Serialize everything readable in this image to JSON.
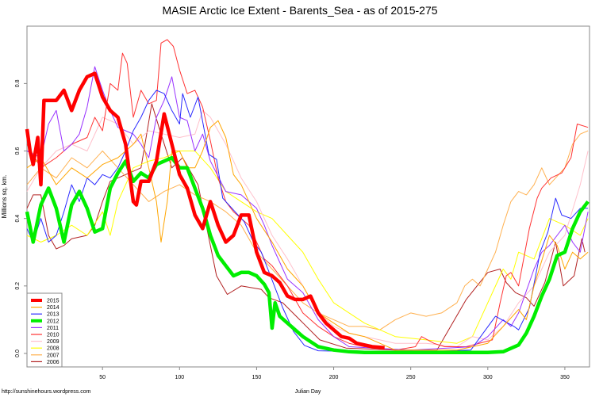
{
  "chart_data": {
    "type": "line",
    "title": "MASIE Arctic Ice Extent - Barents_Sea - as of 2015-275",
    "xlabel": "Julian Day",
    "ylabel": "Millions sq. km.",
    "xlim": [
      1,
      366
    ],
    "ylim": [
      -0.04,
      0.97
    ],
    "xticks": [
      50,
      100,
      150,
      200,
      250,
      300,
      350
    ],
    "yticks": [
      "0.0",
      "0.2",
      "0.4",
      "0.6",
      "0.8"
    ],
    "grid": false,
    "legend_position": "bottom-left",
    "series": [
      {
        "name": "2015",
        "color": "#ff0000",
        "thick": true,
        "x": [
          1,
          3,
          5,
          8,
          10,
          12,
          15,
          20,
          25,
          30,
          35,
          40,
          45,
          50,
          55,
          60,
          65,
          70,
          72,
          75,
          80,
          85,
          90,
          95,
          100,
          105,
          110,
          115,
          120,
          125,
          130,
          135,
          140,
          145,
          150,
          155,
          160,
          165,
          170,
          175,
          180,
          185,
          190,
          195,
          200,
          205,
          210,
          215,
          220,
          225,
          233
        ],
        "y": [
          0.665,
          0.6,
          0.56,
          0.64,
          0.5,
          0.75,
          0.75,
          0.75,
          0.78,
          0.72,
          0.78,
          0.82,
          0.83,
          0.76,
          0.72,
          0.7,
          0.62,
          0.45,
          0.44,
          0.51,
          0.51,
          0.57,
          0.71,
          0.62,
          0.53,
          0.49,
          0.41,
          0.37,
          0.45,
          0.38,
          0.33,
          0.35,
          0.41,
          0.41,
          0.3,
          0.24,
          0.23,
          0.21,
          0.17,
          0.16,
          0.16,
          0.17,
          0.12,
          0.09,
          0.07,
          0.05,
          0.045,
          0.03,
          0.025,
          0.02,
          0.017
        ]
      },
      {
        "name": "2014",
        "color": "#ffa500",
        "thick": false,
        "x": [
          1,
          10,
          20,
          30,
          40,
          50,
          60,
          65,
          70,
          75,
          80,
          85,
          88,
          92,
          95,
          100,
          105,
          110,
          115,
          120,
          125,
          130,
          135,
          140,
          145,
          150,
          160,
          170,
          180,
          190,
          200,
          210,
          220,
          230,
          240,
          260,
          280,
          300,
          310,
          320,
          325,
          330,
          340,
          345,
          350,
          355,
          360,
          365
        ],
        "y": [
          0.55,
          0.58,
          0.5,
          0.55,
          0.52,
          0.56,
          0.58,
          0.6,
          0.62,
          0.65,
          0.55,
          0.45,
          0.33,
          0.45,
          0.6,
          0.6,
          0.55,
          0.55,
          0.6,
          0.67,
          0.69,
          0.64,
          0.53,
          0.5,
          0.45,
          0.4,
          0.33,
          0.25,
          0.2,
          0.12,
          0.09,
          0.06,
          0.05,
          0.03,
          0.01,
          0.01,
          0.01,
          0.03,
          0.08,
          0.13,
          0.1,
          0.2,
          0.35,
          0.32,
          0.25,
          0.3,
          0.28,
          0.3
        ]
      },
      {
        "name": "2013",
        "color": "#2a2aff",
        "thick": false,
        "x": [
          1,
          5,
          10,
          15,
          20,
          25,
          30,
          35,
          40,
          45,
          50,
          55,
          60,
          65,
          70,
          75,
          80,
          85,
          90,
          95,
          100,
          102,
          107,
          112,
          119,
          124,
          128,
          142,
          148,
          153,
          159,
          167,
          174,
          181,
          190,
          220,
          260,
          289,
          305,
          317,
          320,
          327,
          334,
          339,
          344,
          348,
          354,
          360,
          365
        ],
        "y": [
          0.37,
          0.33,
          0.4,
          0.33,
          0.35,
          0.42,
          0.5,
          0.45,
          0.52,
          0.5,
          0.53,
          0.52,
          0.55,
          0.6,
          0.66,
          0.7,
          0.75,
          0.78,
          0.77,
          0.72,
          0.68,
          0.77,
          0.7,
          0.76,
          0.59,
          0.575,
          0.46,
          0.39,
          0.33,
          0.3,
          0.23,
          0.135,
          0.065,
          0.024,
          0.008,
          0.005,
          0.005,
          0.01,
          0.11,
          0.08,
          0.07,
          0.135,
          0.3,
          0.36,
          0.46,
          0.41,
          0.4,
          0.43,
          0.43
        ]
      },
      {
        "name": "2012",
        "color": "#00ee00",
        "thick": true,
        "x": [
          1,
          5,
          10,
          15,
          20,
          25,
          30,
          35,
          40,
          45,
          50,
          55,
          60,
          65,
          70,
          75,
          80,
          85,
          90,
          95,
          100,
          105,
          110,
          115,
          120,
          125,
          130,
          135,
          140,
          145,
          150,
          155,
          158,
          160,
          162,
          165,
          170,
          180,
          190,
          200,
          210,
          220,
          250,
          300,
          310,
          315,
          320,
          325,
          330,
          335,
          340,
          345,
          350,
          355,
          360,
          365
        ],
        "y": [
          0.42,
          0.33,
          0.44,
          0.49,
          0.43,
          0.33,
          0.44,
          0.48,
          0.43,
          0.36,
          0.37,
          0.49,
          0.535,
          0.57,
          0.51,
          0.535,
          0.52,
          0.56,
          0.57,
          0.58,
          0.55,
          0.55,
          0.49,
          0.43,
          0.35,
          0.29,
          0.26,
          0.23,
          0.24,
          0.24,
          0.23,
          0.205,
          0.18,
          0.075,
          0.15,
          0.11,
          0.09,
          0.05,
          0.02,
          0.01,
          0.005,
          0.003,
          0.003,
          0.003,
          0.005,
          0.015,
          0.025,
          0.06,
          0.11,
          0.17,
          0.22,
          0.29,
          0.3,
          0.37,
          0.42,
          0.45
        ]
      },
      {
        "name": "2011",
        "color": "#9933ff",
        "thick": false,
        "x": [
          1,
          10,
          15,
          20,
          25,
          30,
          35,
          40,
          45,
          50,
          55,
          60,
          65,
          70,
          75,
          80,
          85,
          90,
          95,
          100,
          105,
          110,
          115,
          120,
          130,
          140,
          150,
          155,
          160,
          165,
          170,
          180,
          190,
          200,
          210,
          250,
          290,
          300,
          310,
          315,
          320,
          330,
          335,
          340,
          345,
          350,
          355,
          360,
          365
        ],
        "y": [
          0.6,
          0.58,
          0.68,
          0.72,
          0.6,
          0.62,
          0.65,
          0.73,
          0.85,
          0.78,
          0.72,
          0.67,
          0.66,
          0.65,
          0.62,
          0.58,
          0.7,
          0.75,
          0.82,
          0.7,
          0.69,
          0.6,
          0.65,
          0.57,
          0.48,
          0.47,
          0.43,
          0.38,
          0.32,
          0.27,
          0.22,
          0.18,
          0.1,
          0.05,
          0.02,
          0.01,
          0.02,
          0.05,
          0.1,
          0.08,
          0.12,
          0.25,
          0.3,
          0.32,
          0.35,
          0.38,
          0.33,
          0.3,
          0.42
        ]
      },
      {
        "name": "2010",
        "color": "#ff3333",
        "thick": false,
        "x": [
          1,
          10,
          20,
          30,
          40,
          45,
          50,
          55,
          60,
          63,
          66,
          70,
          75,
          80,
          85,
          88,
          92,
          96,
          100,
          105,
          110,
          115,
          120,
          125,
          130,
          135,
          140,
          145,
          150,
          155,
          160,
          170,
          180,
          190,
          200,
          210,
          220,
          240,
          253,
          257,
          265,
          272,
          286,
          303,
          308,
          312,
          315,
          320,
          327,
          332,
          335,
          341,
          348,
          354,
          358,
          365
        ],
        "y": [
          0.62,
          0.55,
          0.58,
          0.62,
          0.64,
          0.7,
          0.66,
          0.8,
          0.78,
          0.89,
          0.86,
          0.7,
          0.78,
          0.74,
          0.75,
          0.92,
          0.93,
          0.91,
          0.84,
          0.77,
          0.78,
          0.73,
          0.63,
          0.52,
          0.45,
          0.42,
          0.4,
          0.38,
          0.33,
          0.28,
          0.26,
          0.2,
          0.12,
          0.08,
          0.05,
          0.03,
          0.02,
          0.01,
          0.02,
          0.05,
          0.03,
          0.02,
          0.02,
          0.04,
          0.15,
          0.23,
          0.24,
          0.2,
          0.37,
          0.46,
          0.49,
          0.52,
          0.535,
          0.58,
          0.68,
          0.67
        ]
      },
      {
        "name": "2009",
        "color": "#ffc0cb",
        "thick": false,
        "x": [
          1,
          10,
          20,
          30,
          40,
          50,
          60,
          70,
          80,
          90,
          100,
          110,
          115,
          120,
          130,
          140,
          150,
          160,
          170,
          180,
          190,
          200,
          210,
          220,
          230,
          240,
          260,
          280,
          290,
          300,
          310,
          320,
          330,
          340,
          350,
          360,
          365
        ],
        "y": [
          0.48,
          0.55,
          0.6,
          0.62,
          0.6,
          0.7,
          0.68,
          0.62,
          0.66,
          0.65,
          0.64,
          0.65,
          0.72,
          0.7,
          0.62,
          0.52,
          0.45,
          0.35,
          0.28,
          0.2,
          0.12,
          0.08,
          0.06,
          0.05,
          0.04,
          0.03,
          0.03,
          0.02,
          0.05,
          0.04,
          0.08,
          0.15,
          0.2,
          0.3,
          0.35,
          0.5,
          0.6
        ]
      },
      {
        "name": "2008",
        "color": "#ffff00",
        "thick": false,
        "x": [
          1,
          10,
          20,
          30,
          40,
          50,
          55,
          60,
          70,
          80,
          90,
          100,
          110,
          120,
          130,
          140,
          150,
          160,
          170,
          180,
          190,
          200,
          210,
          220,
          230,
          240,
          260,
          280,
          290,
          300,
          310,
          315,
          320,
          330,
          340,
          350,
          360,
          365
        ],
        "y": [
          0.35,
          0.33,
          0.35,
          0.38,
          0.35,
          0.42,
          0.35,
          0.45,
          0.55,
          0.57,
          0.58,
          0.6,
          0.6,
          0.55,
          0.48,
          0.45,
          0.42,
          0.4,
          0.35,
          0.3,
          0.22,
          0.15,
          0.12,
          0.09,
          0.07,
          0.05,
          0.04,
          0.03,
          0.05,
          0.15,
          0.25,
          0.22,
          0.3,
          0.28,
          0.4,
          0.38,
          0.35,
          0.4
        ]
      },
      {
        "name": "2007",
        "color": "#ffb04f",
        "thick": false,
        "x": [
          1,
          10,
          20,
          30,
          40,
          50,
          60,
          70,
          80,
          90,
          100,
          110,
          120,
          130,
          140,
          150,
          160,
          170,
          180,
          190,
          200,
          210,
          220,
          230,
          240,
          250,
          260,
          270,
          280,
          285,
          290,
          295,
          300,
          305,
          310,
          315,
          320,
          325,
          330,
          335,
          340,
          350,
          355,
          360,
          365
        ],
        "y": [
          0.5,
          0.55,
          0.52,
          0.58,
          0.55,
          0.6,
          0.55,
          0.5,
          0.45,
          0.48,
          0.5,
          0.47,
          0.45,
          0.42,
          0.38,
          0.3,
          0.25,
          0.2,
          0.15,
          0.12,
          0.1,
          0.08,
          0.08,
          0.07,
          0.1,
          0.12,
          0.11,
          0.12,
          0.15,
          0.2,
          0.22,
          0.2,
          0.25,
          0.3,
          0.38,
          0.45,
          0.48,
          0.47,
          0.5,
          0.55,
          0.5,
          0.55,
          0.62,
          0.65,
          0.66
        ]
      },
      {
        "name": "2006",
        "color": "#b22222",
        "thick": false,
        "x": [
          1,
          5,
          10,
          15,
          20,
          25,
          30,
          40,
          45,
          50,
          55,
          60,
          75,
          82,
          88,
          95,
          102,
          112,
          124,
          131,
          140,
          153,
          158,
          167,
          179,
          191,
          208,
          240,
          267,
          286,
          300,
          308,
          312,
          318,
          325,
          330,
          337,
          344,
          349,
          356,
          361,
          363
        ],
        "y": [
          0.43,
          0.47,
          0.47,
          0.35,
          0.31,
          0.32,
          0.34,
          0.35,
          0.38,
          0.45,
          0.51,
          0.52,
          0.55,
          0.74,
          0.65,
          0.55,
          0.58,
          0.5,
          0.23,
          0.175,
          0.2,
          0.19,
          0.165,
          0.15,
          0.095,
          0.04,
          0.016,
          0.01,
          0.01,
          0.16,
          0.24,
          0.25,
          0.21,
          0.18,
          0.165,
          0.14,
          0.21,
          0.33,
          0.2,
          0.23,
          0.34,
          0.3
        ]
      }
    ]
  },
  "footer": "http://sunshinehours.wordpress.com"
}
